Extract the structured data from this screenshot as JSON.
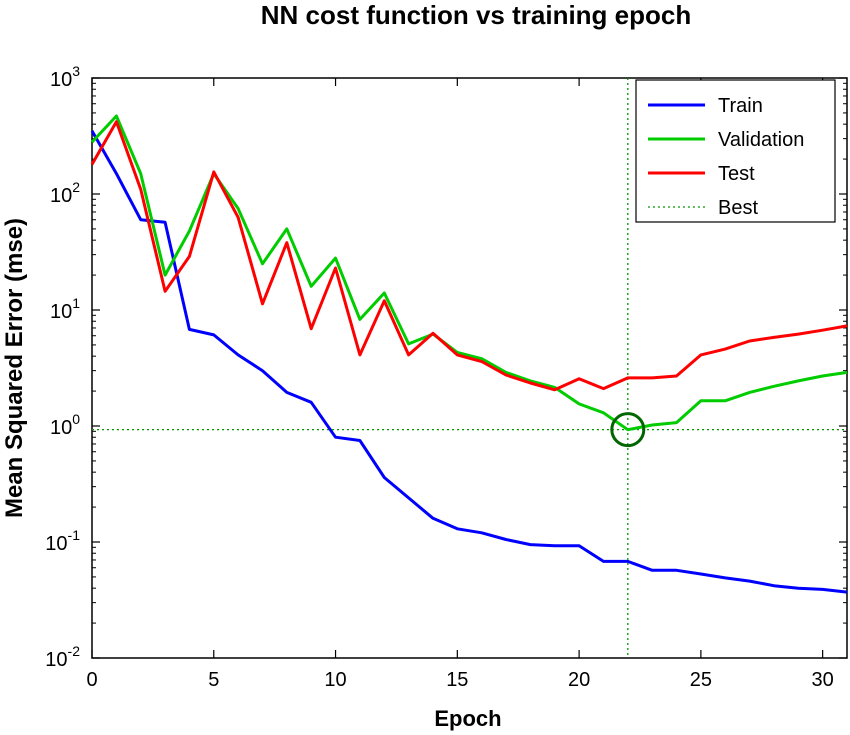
{
  "chart_data": {
    "type": "line",
    "title": "NN cost function vs training epoch",
    "xlabel": "Epoch",
    "ylabel": "Mean Squared Error  (mse)",
    "yscale": "log",
    "xlim": [
      0,
      31
    ],
    "ylim": [
      0.01,
      1000
    ],
    "grid": false,
    "legend_position": "top-right",
    "x_ticks": [
      0,
      5,
      10,
      15,
      20,
      25,
      30
    ],
    "y_ticks": [
      {
        "value": 0.01,
        "base": "10",
        "exp": "-2"
      },
      {
        "value": 0.1,
        "base": "10",
        "exp": "-1"
      },
      {
        "value": 1,
        "base": "10",
        "exp": "0"
      },
      {
        "value": 10,
        "base": "10",
        "exp": "1"
      },
      {
        "value": 100,
        "base": "10",
        "exp": "2"
      },
      {
        "value": 1000,
        "base": "10",
        "exp": "3"
      }
    ],
    "x": [
      0,
      1,
      2,
      3,
      4,
      5,
      6,
      7,
      8,
      9,
      10,
      11,
      12,
      13,
      14,
      15,
      16,
      17,
      18,
      19,
      20,
      21,
      22,
      23,
      24,
      25,
      26,
      27,
      28,
      29,
      30,
      31
    ],
    "series": [
      {
        "name": "Train",
        "color": "#0000ff",
        "values": [
          350,
          150,
          60,
          57,
          6.8,
          6.1,
          4.1,
          3.0,
          1.95,
          1.6,
          0.8,
          0.75,
          0.36,
          0.24,
          0.16,
          0.13,
          0.12,
          0.105,
          0.095,
          0.093,
          0.093,
          0.068,
          0.068,
          0.057,
          0.057,
          0.053,
          0.049,
          0.046,
          0.042,
          0.04,
          0.039,
          0.037
        ]
      },
      {
        "name": "Validation",
        "color": "#00cc00",
        "values": [
          280,
          470,
          150,
          20,
          48,
          150,
          75,
          25,
          50,
          16,
          28,
          8.3,
          14,
          5.1,
          6.2,
          4.3,
          3.8,
          2.9,
          2.45,
          2.15,
          1.55,
          1.3,
          0.93,
          1.02,
          1.07,
          1.65,
          1.65,
          1.95,
          2.2,
          2.45,
          2.7,
          2.9
        ]
      },
      {
        "name": "Test",
        "color": "#ff0000",
        "values": [
          180,
          420,
          110,
          14.5,
          29,
          155,
          63,
          11.3,
          38,
          6.9,
          23,
          4.1,
          12,
          4.1,
          6.3,
          4.1,
          3.6,
          2.75,
          2.35,
          2.05,
          2.55,
          2.1,
          2.6,
          2.6,
          2.7,
          4.1,
          4.6,
          5.4,
          5.8,
          6.2,
          6.7,
          7.3
        ]
      }
    ],
    "best": {
      "name": "Best",
      "epoch": 22,
      "value": 0.93,
      "color": "#009900"
    }
  }
}
